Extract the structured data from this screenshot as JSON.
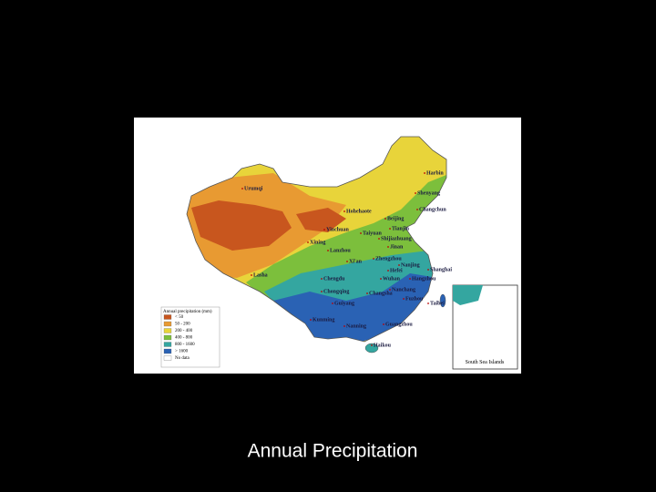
{
  "caption": "Annual Precipitation",
  "map": {
    "legend": {
      "title": "Annual precipitation (mm)",
      "items": [
        {
          "label": "< 50",
          "color": "#c8561e"
        },
        {
          "label": "50 - 200",
          "color": "#e89a32"
        },
        {
          "label": "200 - 400",
          "color": "#e8d43a"
        },
        {
          "label": "400 - 800",
          "color": "#7cbf3c"
        },
        {
          "label": "800 - 1600",
          "color": "#34a6a0"
        },
        {
          "label": "> 1600",
          "color": "#2a62b4"
        },
        {
          "label": "No data",
          "color": "#ffffff"
        }
      ]
    },
    "cities": [
      "Urumqi",
      "Harbin",
      "Shenyang",
      "Changchun",
      "Hohehaote",
      "Beijing",
      "Tianjin",
      "Yinchuan",
      "Taiyuan",
      "Shijiazhuang",
      "Xining",
      "Lanzhou",
      "Jinan",
      "Xi'an",
      "Zhengzhou",
      "Nanjing",
      "Hefei",
      "Shanghai",
      "Lasha",
      "Chengdu",
      "Wuhan",
      "Hangzhou",
      "Chongqing",
      "Changsha",
      "Nanchang",
      "Fuzhou",
      "Taibei",
      "Guiyang",
      "Kunming",
      "Nanning",
      "Guangzhou",
      "Haikou"
    ],
    "inset_label": "South Sea Islands"
  }
}
